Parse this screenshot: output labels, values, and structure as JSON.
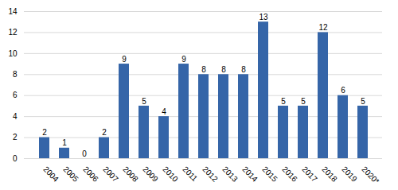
{
  "chart_data": {
    "type": "bar",
    "categories": [
      "2004",
      "2005",
      "2006",
      "2007",
      "2008",
      "2009",
      "2010",
      "2011",
      "2012",
      "2013",
      "2014",
      "2015",
      "2016",
      "2017",
      "2018",
      "2019",
      "2020*"
    ],
    "values": [
      2,
      1,
      0,
      2,
      9,
      5,
      4,
      9,
      8,
      8,
      8,
      13,
      5,
      5,
      12,
      6,
      5
    ],
    "color": "#3565A8",
    "ylim": [
      0,
      14
    ],
    "yticks": [
      0,
      2,
      4,
      6,
      8,
      10,
      12,
      14
    ],
    "grid": true,
    "data_labels": true
  }
}
